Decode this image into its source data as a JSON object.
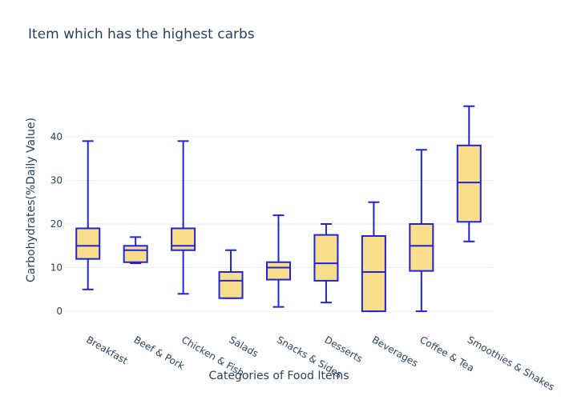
{
  "chart_data": {
    "type": "box",
    "title": "Item which has the highest carbs",
    "xlabel": "Categories of Food Items",
    "ylabel": "Carbohydrates(%Daily Value)",
    "ylim": [
      -2,
      53
    ],
    "yticks": [
      0,
      10,
      20,
      30,
      40
    ],
    "grid": true,
    "legend": "none",
    "colors": {
      "box_fill": "#f8dd8b",
      "box_line": "#1f24d6",
      "grid": "#eceff4",
      "text": "#2a3f5f"
    },
    "categories": [
      "Breakfast",
      "Beef & Pork",
      "Chicken & Fish",
      "Salads",
      "Snacks & Sides",
      "Desserts",
      "Beverages",
      "Coffee & Tea",
      "Smoothies & Shakes"
    ],
    "boxes": [
      {
        "min": 5,
        "q1": 12,
        "median": 15,
        "q3": 19,
        "max": 39
      },
      {
        "min": 11,
        "q1": 11.25,
        "median": 14,
        "q3": 15,
        "max": 17
      },
      {
        "min": 4,
        "q1": 14,
        "median": 15,
        "q3": 19,
        "max": 39
      },
      {
        "min": 3,
        "q1": 3,
        "median": 7,
        "q3": 9,
        "max": 14
      },
      {
        "min": 1,
        "q1": 7.25,
        "median": 10,
        "q3": 11.25,
        "max": 22
      },
      {
        "min": 2,
        "q1": 7,
        "median": 11,
        "q3": 17.5,
        "max": 20
      },
      {
        "min": 0,
        "q1": 0,
        "median": 9,
        "q3": 17.25,
        "max": 25
      },
      {
        "min": 0,
        "q1": 9.25,
        "median": 15,
        "q3": 20,
        "max": 37
      },
      {
        "min": 16,
        "q1": 20.5,
        "median": 29.5,
        "q3": 38,
        "max": 47
      }
    ]
  }
}
